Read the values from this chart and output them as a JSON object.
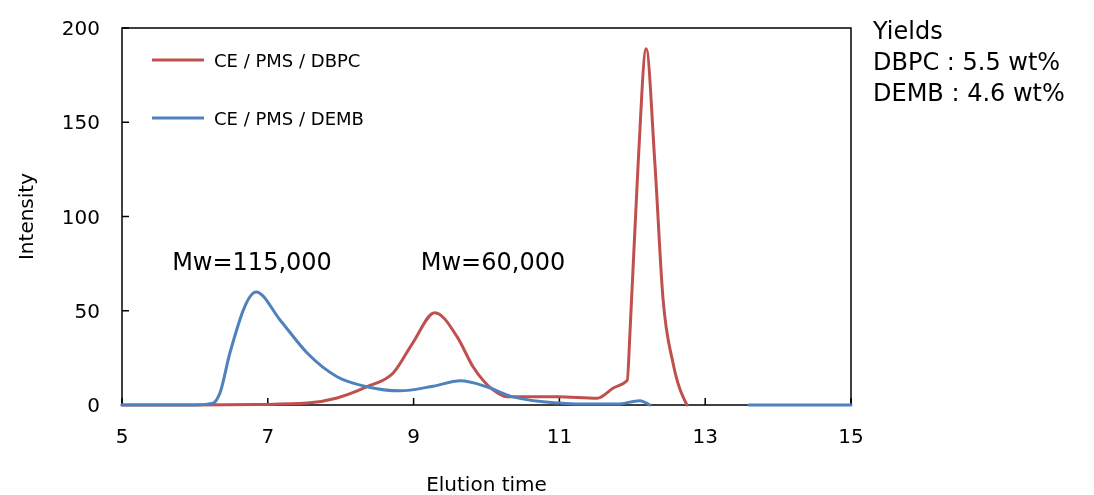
{
  "chart_data": {
    "type": "line",
    "xlabel": "Elution time",
    "ylabel": "Intensity",
    "xlim": [
      5,
      15
    ],
    "xticks": [
      5,
      7,
      9,
      11,
      13,
      15
    ],
    "ylim": [
      0,
      200
    ],
    "yticks": [
      0,
      50,
      100,
      150,
      200
    ],
    "grid": false,
    "legend": "top left",
    "marker": "none",
    "line_style": "solid",
    "series": [
      {
        "name": "CE / PMS / DBPC",
        "color": "#c0504d",
        "x": [
          5,
          6,
          7,
          7.54,
          7.95,
          8.36,
          8.72,
          8.99,
          9.29,
          9.6,
          9.82,
          10.09,
          10.28,
          10.97,
          11.52,
          11.74,
          11.93,
          11.97,
          12.08,
          12.19,
          12.31,
          12.42,
          12.56,
          12.75
        ],
        "values": [
          0,
          0,
          0.3,
          1,
          3.7,
          9.7,
          17,
          33,
          49,
          36,
          20,
          8,
          4.4,
          4.4,
          3.6,
          9,
          13,
          40,
          128,
          189,
          128,
          57,
          22,
          0
        ]
      },
      {
        "name": "CE / PMS / DEMB",
        "color": "#4f81bd",
        "x": [
          5,
          6,
          6.25,
          6.34,
          6.48,
          6.84,
          7.17,
          7.54,
          7.95,
          8.36,
          8.81,
          9.27,
          9.64,
          10,
          10.36,
          11,
          11.28,
          11.8,
          12.1,
          12.24
        ],
        "values": [
          0,
          0,
          1,
          6,
          27.6,
          60,
          45,
          27.6,
          15,
          9.7,
          7.5,
          10,
          12.8,
          9.7,
          4.3,
          1,
          0.5,
          0.5,
          2.3,
          0
        ]
      },
      {
        "color": "#4f81bd",
        "x": [
          13.6,
          14,
          15
        ],
        "values": [
          0,
          0,
          0
        ]
      }
    ],
    "annotations": [
      "Mw=115,000",
      "Mw=60,000",
      "Yields",
      "DBPC : 5.5 wt%",
      "DEMB : 4.6 wt%"
    ]
  }
}
